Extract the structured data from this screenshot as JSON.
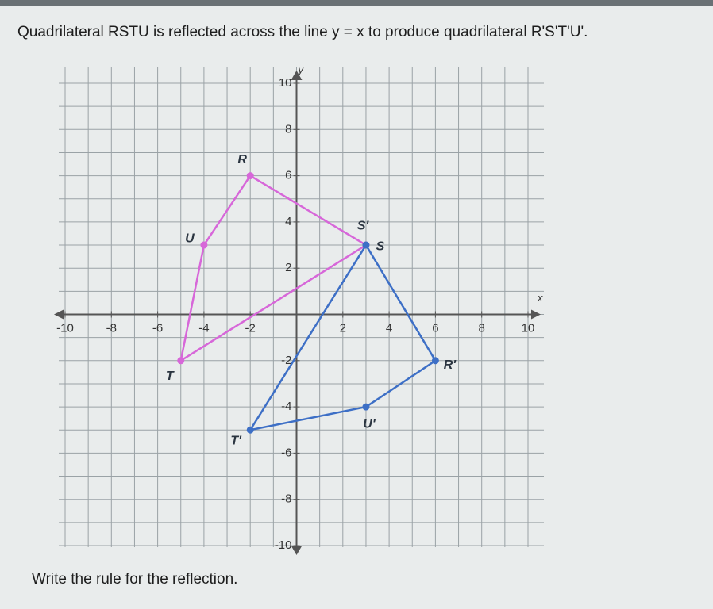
{
  "chart_data": {
    "type": "polygon",
    "title": "Quadrilateral RSTU is reflected across the line y = x to produce quadrilateral R'S'T'U'.",
    "footer": "Write the rule for the reflection.",
    "x_label": "x",
    "y_label": "y",
    "xlim": [
      -10,
      10
    ],
    "ylim": [
      -10,
      10
    ],
    "xticks": [
      -10,
      -8,
      -6,
      -4,
      -2,
      2,
      4,
      6,
      8,
      10
    ],
    "yticks": [
      10,
      8,
      6,
      4,
      2,
      -2,
      -4,
      -6,
      -8,
      -10
    ],
    "grid": true,
    "minor_grid": 1,
    "series": [
      {
        "color": "#d767d9",
        "labels": [
          "R",
          "S",
          "T",
          "U"
        ],
        "x": [
          -2,
          3,
          -5,
          -4
        ],
        "values": [
          6,
          3,
          -2,
          3
        ]
      },
      {
        "color": "#3d6fc6",
        "labels": [
          "R'",
          "S'",
          "T'",
          "U'"
        ],
        "x": [
          6,
          3,
          -2,
          3
        ],
        "values": [
          -2,
          3,
          -5,
          -4
        ]
      }
    ]
  }
}
